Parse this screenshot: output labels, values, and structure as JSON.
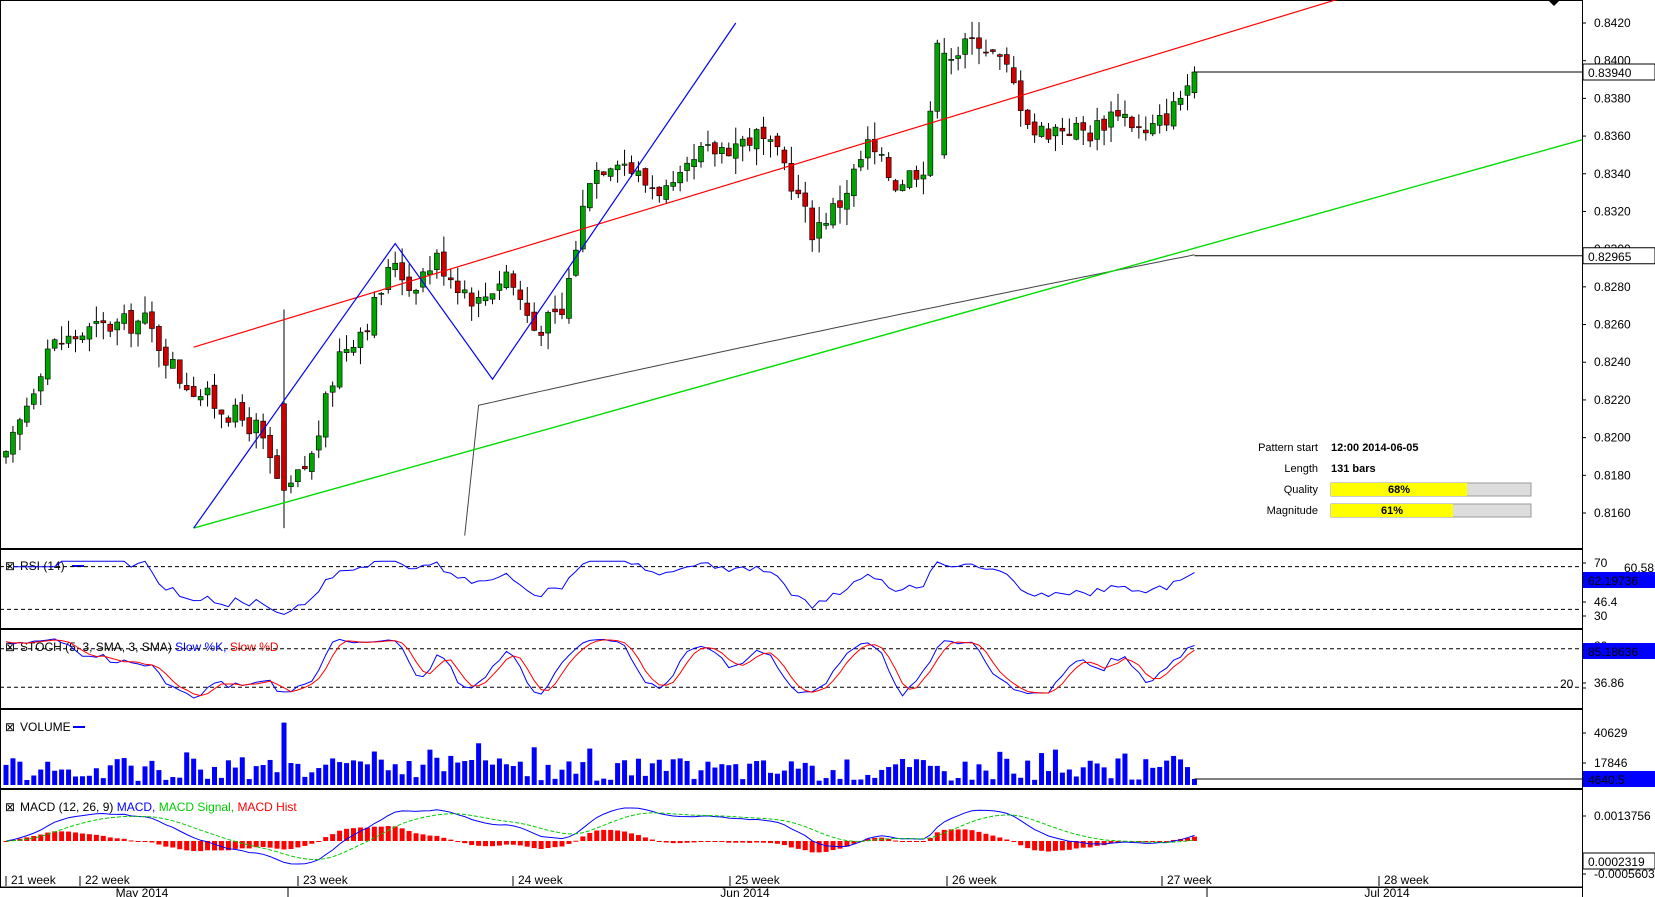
{
  "colors": {
    "bull": "#00a400",
    "bear": "#cc0000",
    "resistance": "#ff0000",
    "support": "#00dd00",
    "pattern": "#0000ff",
    "ma": "#444444",
    "blue": "#0000ff",
    "red": "#ff0000",
    "macd_signal": "#00cc00",
    "tag_bg": "#0000ff",
    "quality_fill": "#ffff00"
  },
  "main": {
    "price_ticks": [
      "0.8420",
      "0.8400",
      "0.8380",
      "0.8360",
      "0.8340",
      "0.8320",
      "0.8300",
      "0.8280",
      "0.8260",
      "0.8240",
      "0.8220",
      "0.8200",
      "0.8180",
      "0.8160"
    ],
    "current_price": "0.83940",
    "ma_price": "0.82965"
  },
  "info": {
    "pattern_start_label": "Pattern start",
    "pattern_start_value": "12:00 2014-06-05",
    "length_label": "Length",
    "length_value": "131 bars",
    "quality_label": "Quality",
    "quality_value": "68%",
    "quality_fraction": 0.68,
    "magnitude_label": "Magnitude",
    "magnitude_value": "61%",
    "magnitude_fraction": 0.61
  },
  "rsi": {
    "title": "RSI (14)",
    "levels": [
      "70",
      "46.4",
      "30"
    ],
    "current": "62.19736",
    "partial_label": "60.58"
  },
  "stoch": {
    "title_prefix": "STOCH (5, 3, SMA, 3, SMA)",
    "k_label": "Slow %K,",
    "d_label": "Slow %D",
    "levels": [
      "80",
      "36.86",
      "20"
    ],
    "current": "85.18636"
  },
  "volume": {
    "title": "VOLUME",
    "levels": [
      "40629",
      "17846"
    ],
    "current": "4640.5"
  },
  "macd": {
    "title_prefix": "MACD (12, 26, 9)",
    "macd_label": "MACD,",
    "signal_label": "MACD Signal,",
    "hist_label": "MACD Hist",
    "levels": [
      "0.0013756",
      "-0.0005603"
    ],
    "current": "0.0002319"
  },
  "x_axis": {
    "weeks": [
      "21 week",
      "22 week",
      "23 week",
      "24 week",
      "25 week",
      "26 week",
      "27 week",
      "28 week"
    ],
    "months": [
      "May 2014",
      "Jun 2014",
      "Jul 2014"
    ]
  },
  "chart_data": {
    "type": "candlestick",
    "symbol_interval": "4h",
    "ylim": [
      0.8148,
      0.8425
    ],
    "resistance_line": {
      "from": [
        27,
        0.8248
      ],
      "to": [
        200,
        0.8442
      ]
    },
    "support_line": {
      "from": [
        27,
        0.8152
      ],
      "to": [
        200,
        0.8361
      ]
    },
    "pattern_polyline": [
      [
        27,
        0.8152
      ],
      [
        56,
        0.8303
      ],
      [
        70,
        0.8231
      ],
      [
        105,
        0.842
      ]
    ],
    "candles": []
  }
}
